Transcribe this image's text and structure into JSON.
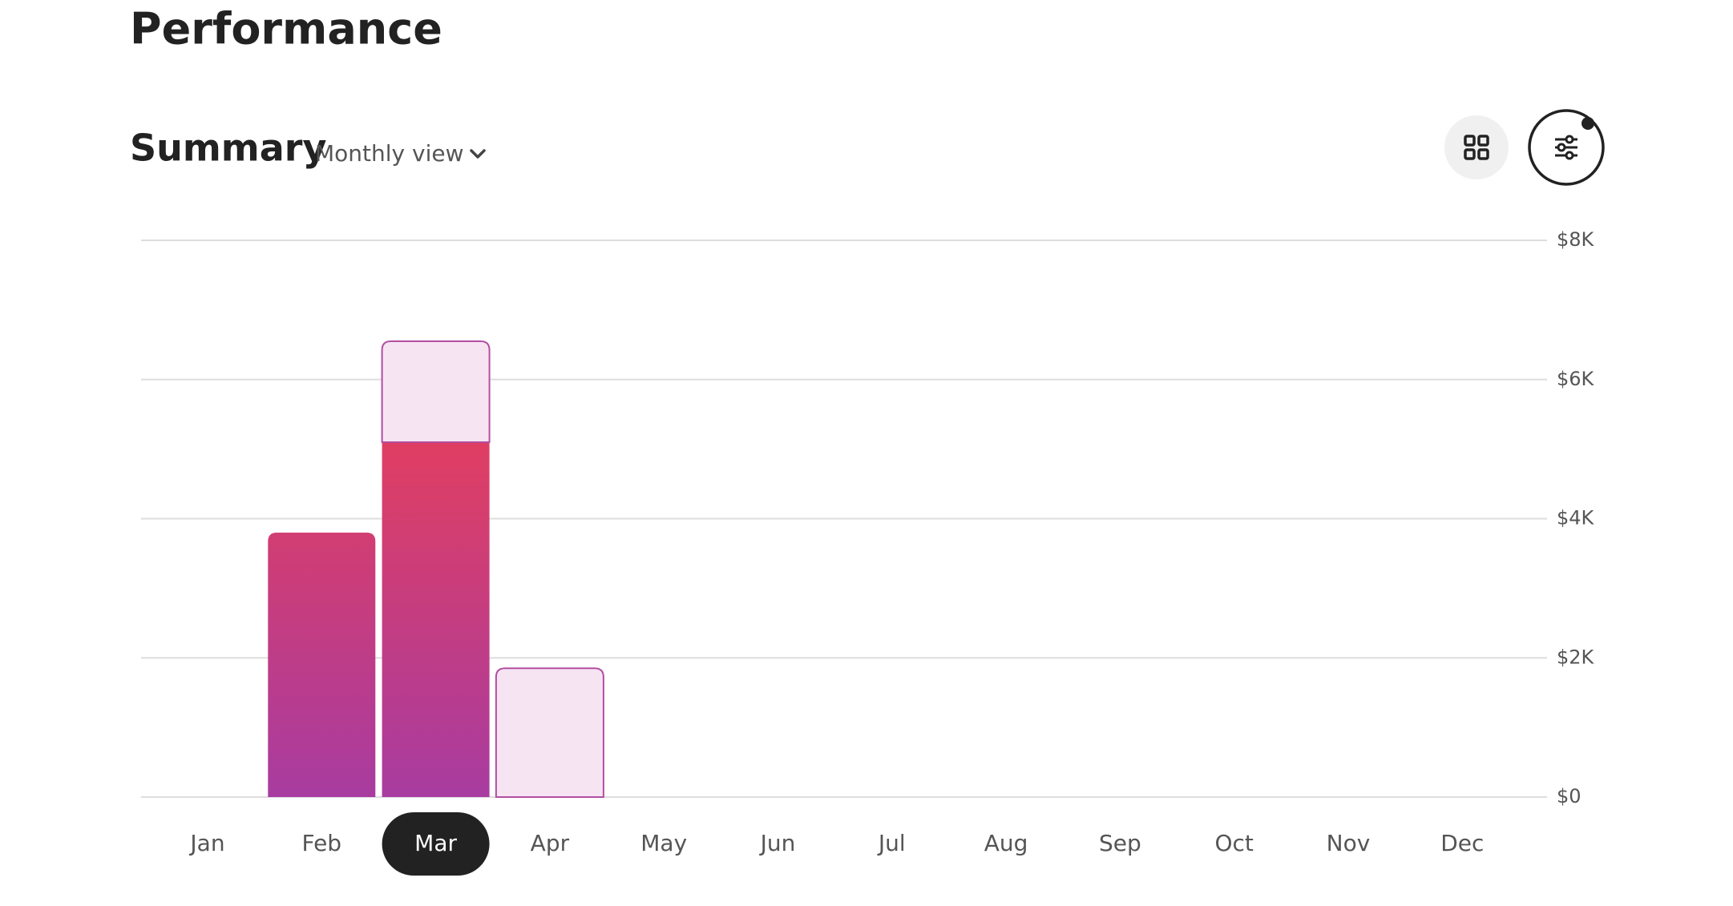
{
  "page": {
    "title": "Performance",
    "section": "Summary",
    "view_selector": "Monthly view"
  },
  "chart_data": {
    "type": "stacked-bar",
    "categories": [
      "Jan",
      "Feb",
      "Mar",
      "Apr",
      "May",
      "Jun",
      "Jul",
      "Aug",
      "Sep",
      "Oct",
      "Nov",
      "Dec"
    ],
    "selected": "Mar",
    "series": [
      {
        "colors": [
          "#e03e62",
          "#a83ca0"
        ],
        "values": [
          null,
          3800,
          5100,
          null,
          null,
          null,
          null,
          null,
          null,
          null,
          null,
          null
        ]
      },
      {
        "color": "#f6e4f3",
        "stroke": "#b34fa0",
        "values": [
          null,
          null,
          1450,
          1850,
          null,
          null,
          null,
          null,
          null,
          null,
          null,
          null
        ]
      }
    ],
    "ylim": [
      0,
      8000
    ],
    "yticks": [
      {
        "value": 0,
        "label": "$0"
      },
      {
        "value": 2000,
        "label": "$2K"
      },
      {
        "value": 4000,
        "label": "$4K"
      },
      {
        "value": 6000,
        "label": "$6K"
      },
      {
        "value": 8000,
        "label": "$8K"
      }
    ],
    "y_axis_side": "right",
    "grid": true
  }
}
